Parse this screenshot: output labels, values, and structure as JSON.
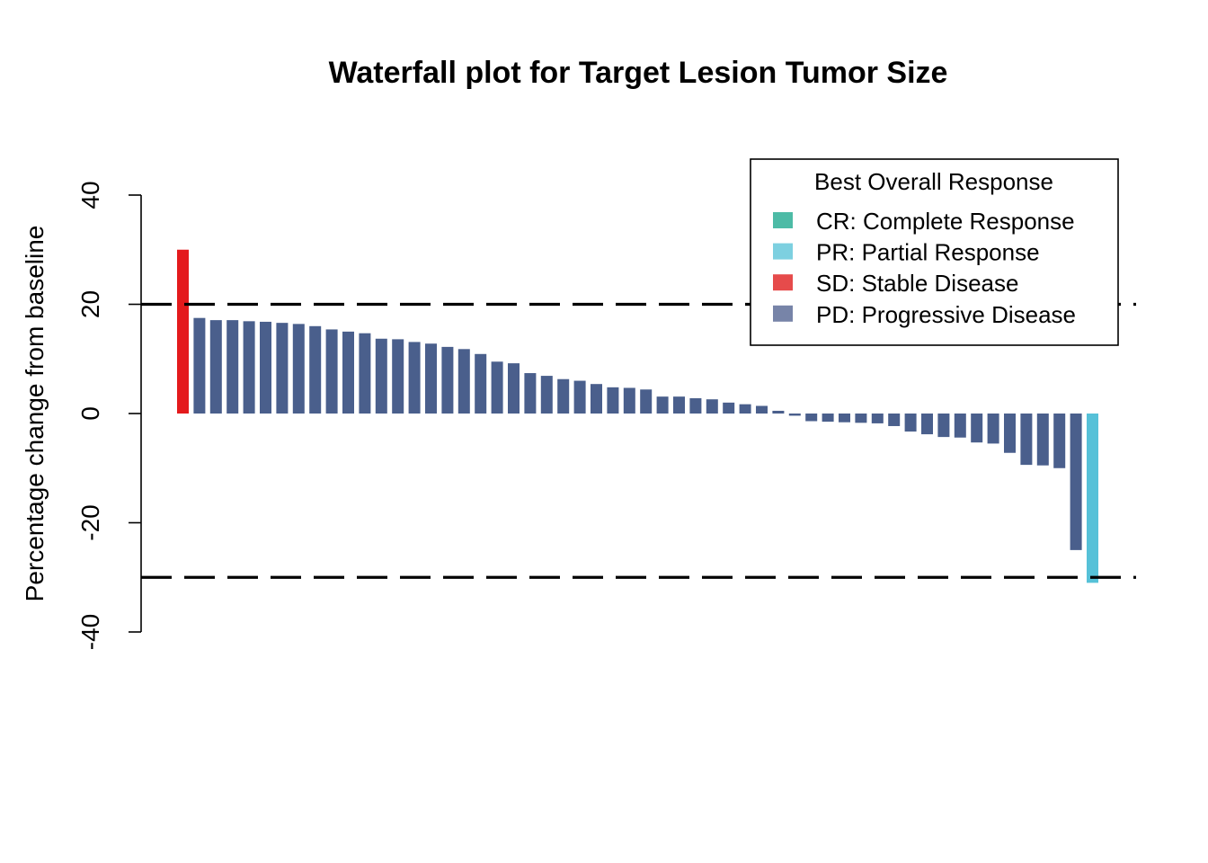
{
  "chart_data": {
    "type": "bar",
    "title": "Waterfall plot for Target Lesion Tumor Size",
    "xlabel": "",
    "ylabel": "Percentage change from baseline",
    "ylim": [
      -40,
      40
    ],
    "yticks": [
      40,
      20,
      0,
      -20,
      -40
    ],
    "yticks_labels": [
      "40",
      "20",
      "0",
      "-20",
      "-40"
    ],
    "reference_lines": [
      20,
      -30
    ],
    "grid": false,
    "legend": {
      "title": "Best Overall Response",
      "position": "top-right",
      "entries": [
        {
          "key": "CR",
          "label": "CR: Complete Response",
          "color": "#4DBBA6"
        },
        {
          "key": "PR",
          "label": "PR: Partial Response",
          "color": "#7DD0E0"
        },
        {
          "key": "SD",
          "label": "SD: Stable Disease",
          "color": "#E64B4B"
        },
        {
          "key": "PD",
          "label": "PD: Progressive Disease",
          "color": "#7784A8"
        }
      ]
    },
    "bar_colors": {
      "SD": "#E41A1C",
      "PD": "#4A5F8C",
      "PR": "#56C1D8",
      "CR": "#3FB39A"
    },
    "values": [
      30,
      17.5,
      17.1,
      17.1,
      16.9,
      16.8,
      16.6,
      16.4,
      16.0,
      15.4,
      15.0,
      14.7,
      13.7,
      13.6,
      13.1,
      12.8,
      12.2,
      11.8,
      10.9,
      9.5,
      9.2,
      7.4,
      6.9,
      6.3,
      6.0,
      5.4,
      4.8,
      4.7,
      4.4,
      3.1,
      3.1,
      2.8,
      2.6,
      2.0,
      1.7,
      1.4,
      0.5,
      -0.4,
      -1.4,
      -1.5,
      -1.6,
      -1.7,
      -1.8,
      -2.3,
      -3.3,
      -3.8,
      -4.3,
      -4.4,
      -5.3,
      -5.5,
      -7.2,
      -9.4,
      -9.5,
      -10.0,
      -25.0,
      -31.0
    ],
    "responses": [
      "SD",
      "PD",
      "PD",
      "PD",
      "PD",
      "PD",
      "PD",
      "PD",
      "PD",
      "PD",
      "PD",
      "PD",
      "PD",
      "PD",
      "PD",
      "PD",
      "PD",
      "PD",
      "PD",
      "PD",
      "PD",
      "PD",
      "PD",
      "PD",
      "PD",
      "PD",
      "PD",
      "PD",
      "PD",
      "PD",
      "PD",
      "PD",
      "PD",
      "PD",
      "PD",
      "PD",
      "PD",
      "PD",
      "PD",
      "PD",
      "PD",
      "PD",
      "PD",
      "PD",
      "PD",
      "PD",
      "PD",
      "PD",
      "PD",
      "PD",
      "PD",
      "PD",
      "PD",
      "PD",
      "PD",
      "PR"
    ]
  }
}
